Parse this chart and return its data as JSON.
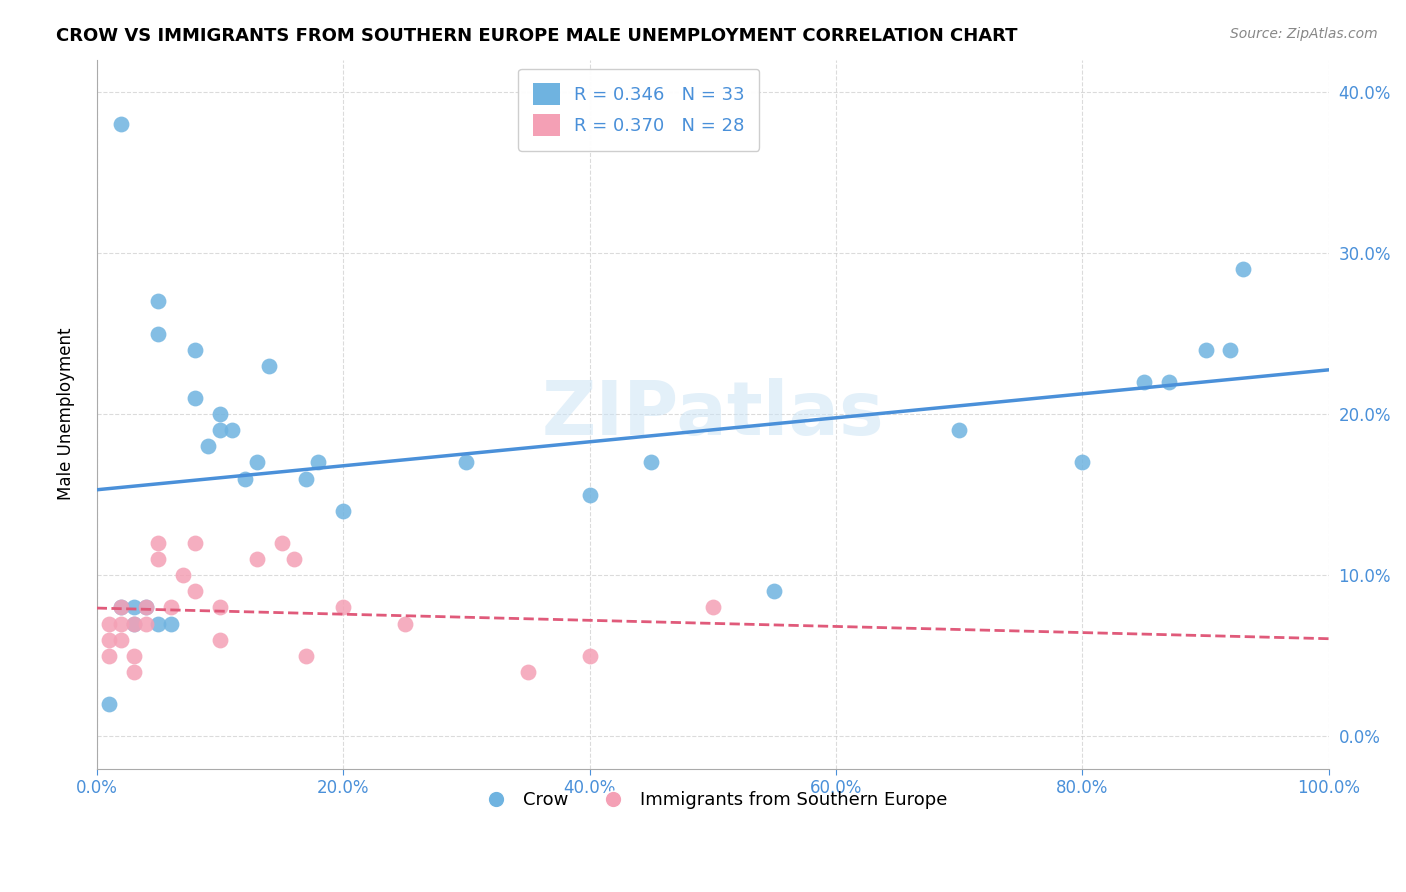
{
  "title": "CROW VS IMMIGRANTS FROM SOUTHERN EUROPE MALE UNEMPLOYMENT CORRELATION CHART",
  "source": "Source: ZipAtlas.com",
  "xlabel_tick_vals": [
    0,
    20,
    40,
    60,
    80,
    100
  ],
  "ylabel_tick_vals": [
    0,
    10,
    20,
    30,
    40
  ],
  "xlim": [
    0,
    100
  ],
  "ylim": [
    -2,
    42
  ],
  "ylabel": "Male Unemployment",
  "legend1_label": "Crow",
  "legend2_label": "Immigrants from Southern Europe",
  "crow_R": "0.346",
  "crow_N": "33",
  "imm_R": "0.370",
  "imm_N": "28",
  "crow_color": "#6fb3e0",
  "imm_color": "#f4a0b5",
  "crow_line_color": "#4a90d9",
  "imm_line_color": "#e05a7a",
  "crow_scatter_x": [
    2,
    5,
    5,
    8,
    8,
    9,
    10,
    10,
    11,
    12,
    13,
    14,
    17,
    18,
    20,
    30,
    40,
    45,
    55,
    70,
    80,
    85,
    87,
    90,
    92,
    93,
    1,
    2,
    3,
    3,
    4,
    5,
    6
  ],
  "crow_scatter_y": [
    38,
    27,
    25,
    24,
    21,
    18,
    20,
    19,
    19,
    16,
    17,
    23,
    16,
    17,
    14,
    17,
    15,
    17,
    9,
    19,
    17,
    22,
    22,
    24,
    24,
    29,
    2,
    8,
    8,
    7,
    8,
    7,
    7
  ],
  "imm_scatter_x": [
    1,
    1,
    1,
    2,
    2,
    2,
    3,
    3,
    3,
    4,
    4,
    5,
    5,
    6,
    7,
    8,
    8,
    10,
    10,
    13,
    15,
    16,
    17,
    20,
    25,
    35,
    40,
    50
  ],
  "imm_scatter_y": [
    7,
    6,
    5,
    8,
    7,
    6,
    7,
    5,
    4,
    8,
    7,
    12,
    11,
    8,
    10,
    9,
    12,
    8,
    6,
    11,
    12,
    11,
    5,
    8,
    7,
    4,
    5,
    8
  ],
  "watermark": "ZIPatlas",
  "background_color": "#ffffff",
  "grid_color": "#cccccc"
}
